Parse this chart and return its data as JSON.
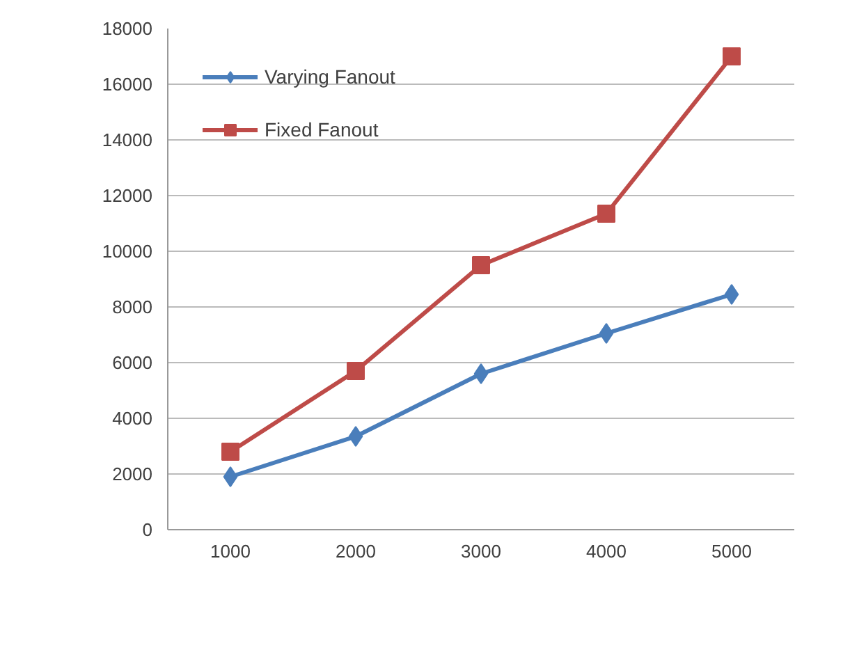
{
  "chart_data": {
    "type": "line",
    "categories": [
      "1000",
      "2000",
      "3000",
      "4000",
      "5000"
    ],
    "series": [
      {
        "name": "Varying Fanout",
        "color": "#4a7ebb",
        "marker": "diamond",
        "values": [
          1900,
          3350,
          5600,
          7050,
          8450
        ]
      },
      {
        "name": "Fixed Fanout",
        "color": "#be4b48",
        "marker": "square",
        "values": [
          2800,
          5700,
          9500,
          11350,
          17000
        ]
      }
    ],
    "ylim": [
      0,
      18000
    ],
    "yticks": [
      0,
      2000,
      4000,
      6000,
      8000,
      10000,
      12000,
      14000,
      16000,
      18000
    ],
    "grid": "y",
    "legend": "top left",
    "line_style": "solid"
  }
}
